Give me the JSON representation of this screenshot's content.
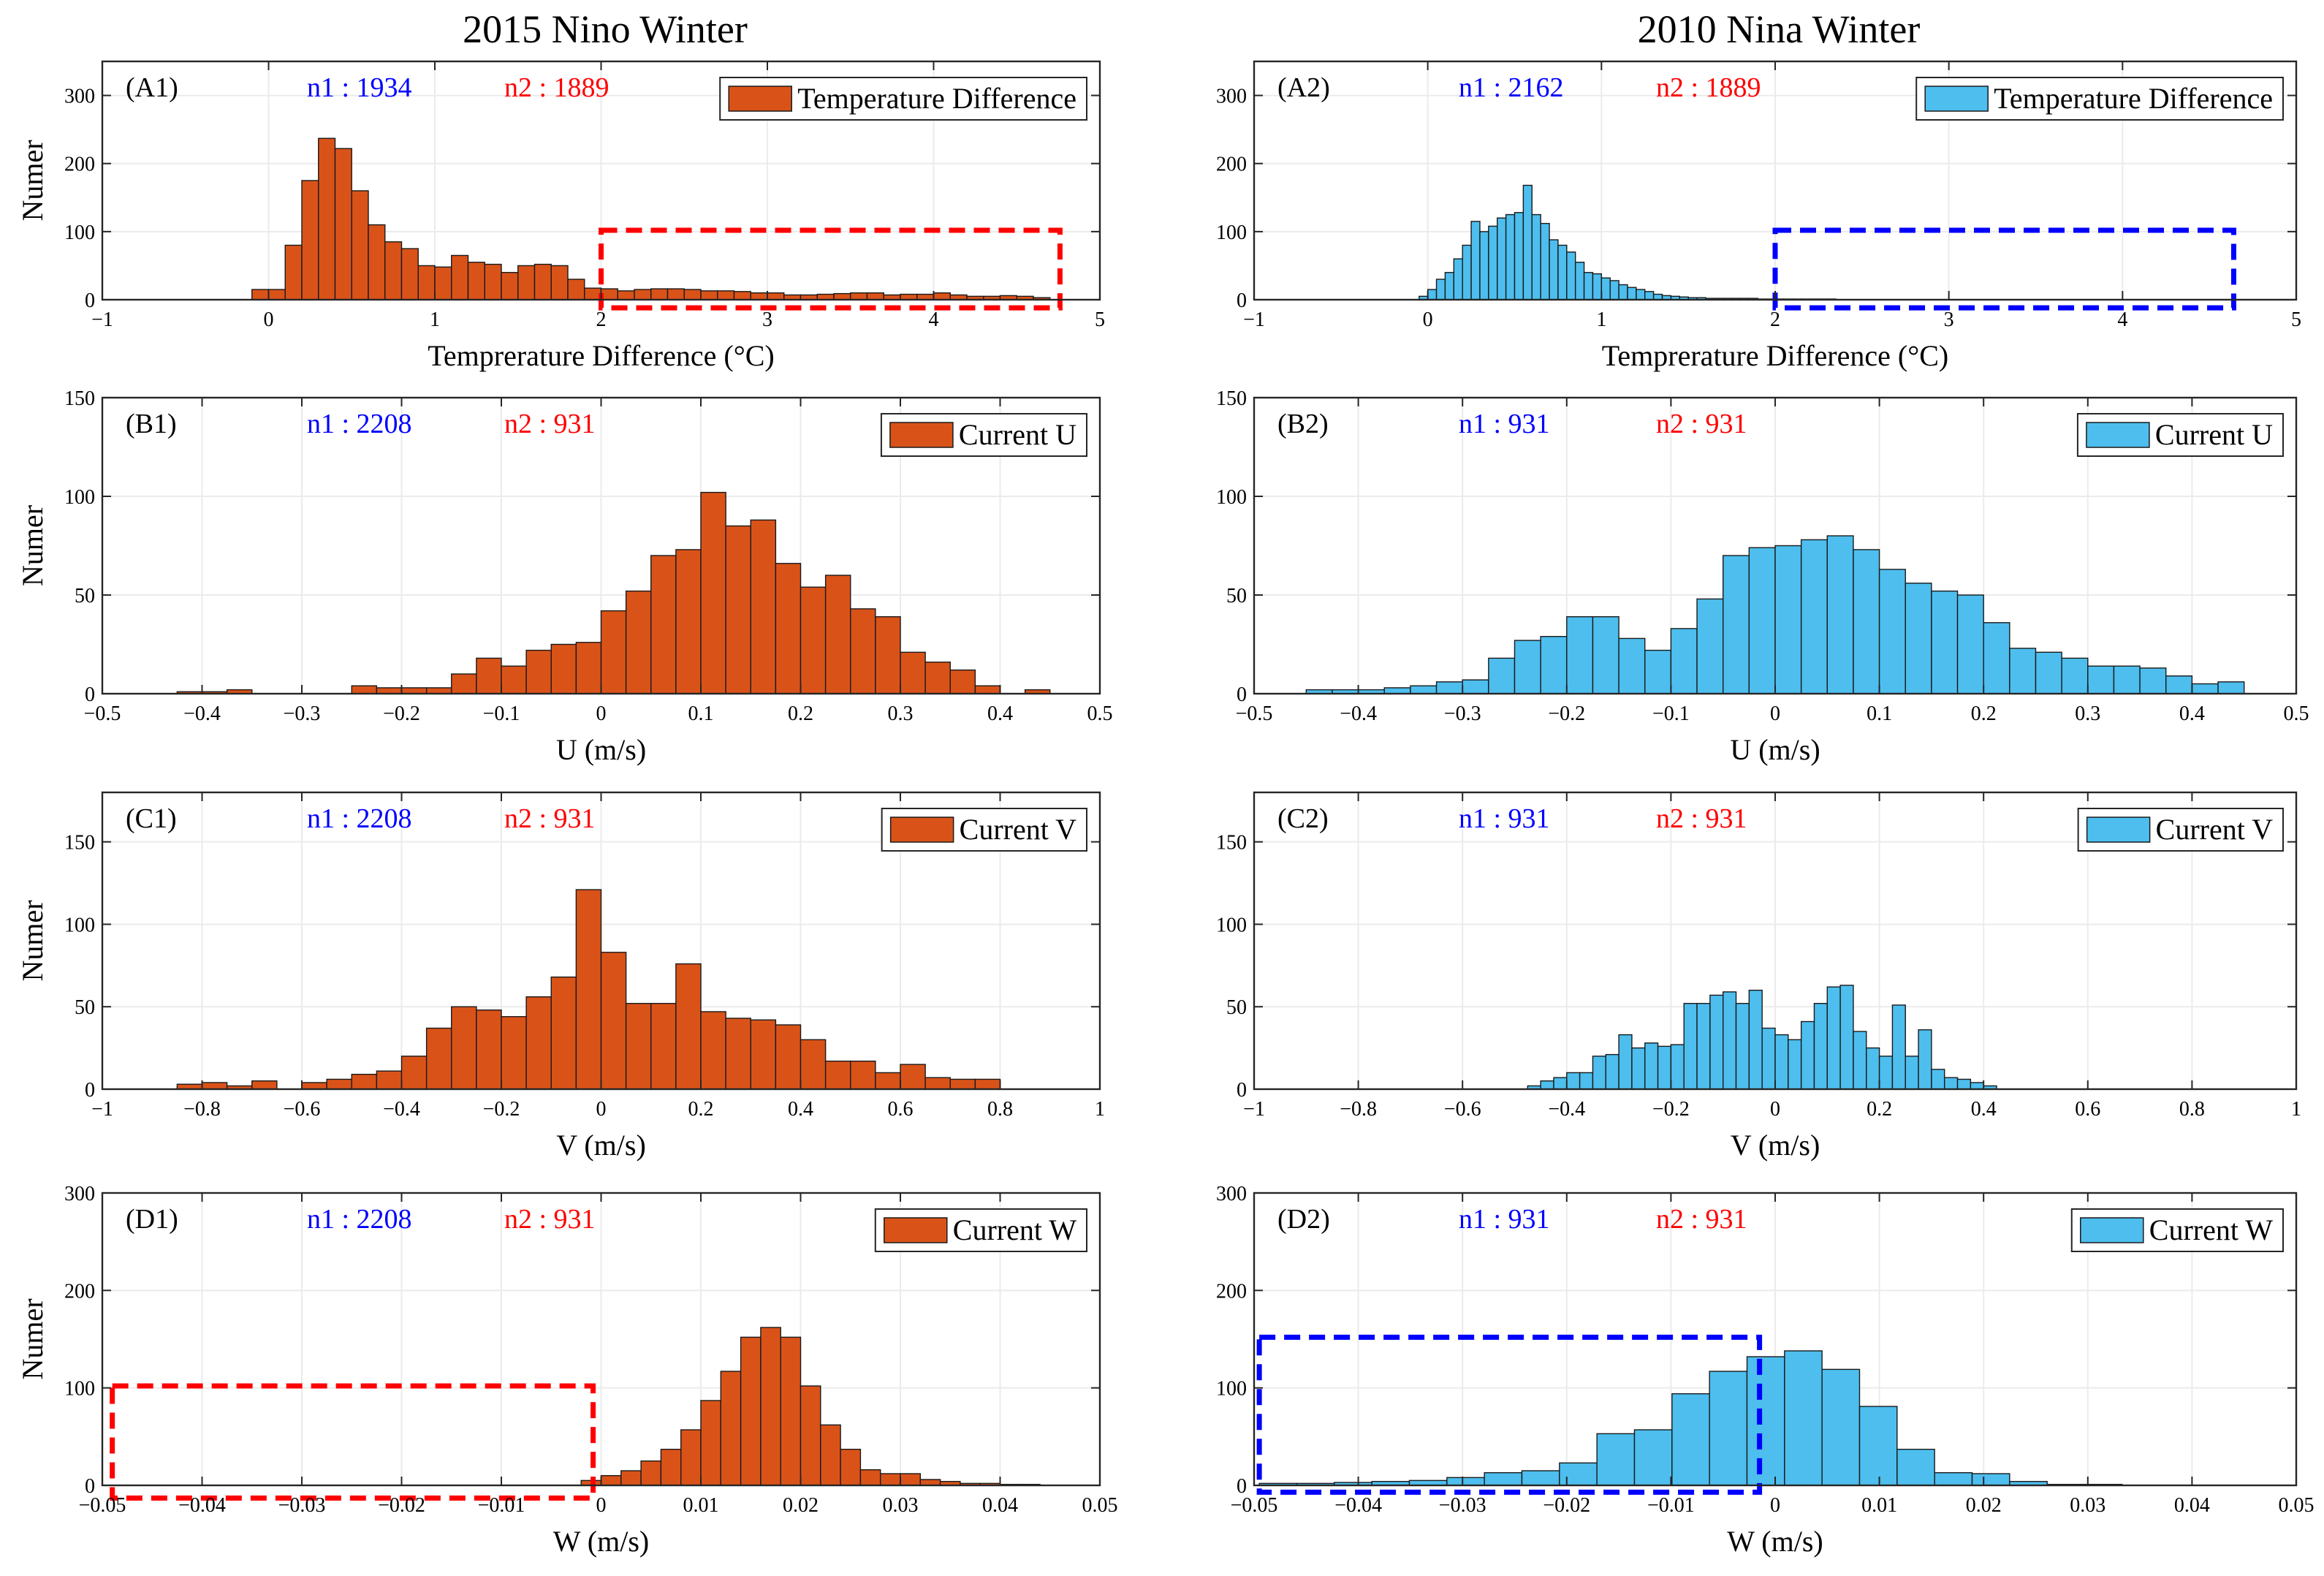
{
  "colors": {
    "nino": "#D95319",
    "nina": "#4DBEEE",
    "n1": "#0000ff",
    "n2": "#ff0000",
    "grid": "#ebebeb"
  },
  "titles": {
    "left": "2015 Nino Winter",
    "right": "2010 Nina Winter"
  },
  "chart_data": [
    {
      "id": "A1",
      "type": "bar",
      "panel_label": "(A1)",
      "n1": "n1 : 1934",
      "n2": "n2 : 1889",
      "legend": "Temperature Difference",
      "legend_loc": "top-right",
      "xlabel": "Temprerature Difference (°C)",
      "ylabel": "Numer",
      "xlim": [
        -1,
        5
      ],
      "ylim": [
        0,
        350
      ],
      "xticks": [
        -1,
        0,
        1,
        2,
        3,
        4,
        5
      ],
      "xtick_labels": [
        "−1",
        "0",
        "1",
        "2",
        "3",
        "4",
        "5"
      ],
      "yticks": [
        0,
        100,
        200,
        300
      ],
      "ytick_labels": [
        "0",
        "100",
        "200",
        "300"
      ],
      "color_key": "nino",
      "bin_start": -0.1,
      "bin_width": 0.1,
      "values": [
        15,
        15,
        80,
        175,
        237,
        222,
        160,
        110,
        85,
        75,
        50,
        48,
        65,
        55,
        52,
        40,
        50,
        52,
        50,
        30,
        17,
        16,
        13,
        15,
        16,
        16,
        15,
        13,
        13,
        12,
        10,
        10,
        7,
        7,
        8,
        9,
        10,
        10,
        7,
        8,
        8,
        10,
        7,
        5,
        5,
        6,
        5,
        3
      ],
      "highlight": {
        "x": [
          2,
          4.76
        ],
        "y": [
          -12,
          102
        ],
        "color_key": "n2"
      }
    },
    {
      "id": "A2",
      "type": "bar",
      "panel_label": "(A2)",
      "n1": "n1 : 2162",
      "n2": "n2 : 1889",
      "legend": "Temperature Difference",
      "legend_loc": "top-right",
      "xlabel": "Temprerature Difference (°C)",
      "ylabel": "",
      "xlim": [
        -1,
        5
      ],
      "ylim": [
        0,
        350
      ],
      "xticks": [
        -1,
        0,
        1,
        2,
        3,
        4,
        5
      ],
      "xtick_labels": [
        "−1",
        "0",
        "1",
        "2",
        "3",
        "4",
        "5"
      ],
      "yticks": [
        0,
        100,
        200,
        300
      ],
      "ytick_labels": [
        "0",
        "100",
        "200",
        "300"
      ],
      "color_key": "nina",
      "bin_start": -0.05,
      "bin_width": 0.05,
      "values": [
        5,
        15,
        30,
        40,
        60,
        80,
        115,
        100,
        108,
        120,
        125,
        128,
        168,
        125,
        112,
        88,
        80,
        70,
        55,
        40,
        38,
        32,
        28,
        22,
        18,
        15,
        12,
        8,
        6,
        5,
        4,
        3,
        3,
        2,
        2,
        2,
        2,
        2,
        2,
        1,
        1,
        1,
        1,
        1,
        1,
        1,
        1,
        1
      ],
      "highlight": {
        "x": [
          2,
          4.64
        ],
        "y": [
          -12,
          102
        ],
        "color_key": "n1"
      }
    },
    {
      "id": "B1",
      "type": "bar",
      "panel_label": "(B1)",
      "n1": "n1 : 2208",
      "n2": "n2 : 931",
      "legend": "Current U",
      "legend_loc": "top-right",
      "xlabel": "U (m/s)",
      "ylabel": "Numer",
      "xlim": [
        -0.5,
        0.5
      ],
      "ylim": [
        0,
        150
      ],
      "xticks": [
        -0.5,
        -0.4,
        -0.3,
        -0.2,
        -0.1,
        0,
        0.1,
        0.2,
        0.3,
        0.4,
        0.5
      ],
      "xtick_labels": [
        "−0.5",
        "−0.4",
        "−0.3",
        "−0.2",
        "−0.1",
        "0",
        "0.1",
        "0.2",
        "0.3",
        "0.4",
        "0.5"
      ],
      "yticks": [
        0,
        50,
        100,
        150
      ],
      "ytick_labels": [
        "0",
        "50",
        "100",
        "150"
      ],
      "color_key": "nino",
      "bin_start": -0.425,
      "bin_width": 0.025,
      "values": [
        1,
        1,
        2,
        0,
        0,
        0,
        0,
        4,
        3,
        3,
        3,
        10,
        18,
        14,
        22,
        25,
        26,
        42,
        52,
        70,
        73,
        102,
        85,
        88,
        66,
        54,
        60,
        43,
        39,
        21,
        16,
        12,
        4,
        0,
        2,
        0,
        0,
        0
      ],
      "highlight": null
    },
    {
      "id": "B2",
      "type": "bar",
      "panel_label": "(B2)",
      "n1": "n1 : 931",
      "n2": "n2 : 931",
      "legend": "Current U",
      "legend_loc": "top-right",
      "xlabel": "U (m/s)",
      "ylabel": "",
      "xlim": [
        -0.5,
        0.5
      ],
      "ylim": [
        0,
        150
      ],
      "xticks": [
        -0.5,
        -0.4,
        -0.3,
        -0.2,
        -0.1,
        0,
        0.1,
        0.2,
        0.3,
        0.4,
        0.5
      ],
      "xtick_labels": [
        "−0.5",
        "−0.4",
        "−0.3",
        "−0.2",
        "−0.1",
        "0",
        "0.1",
        "0.2",
        "0.3",
        "0.4",
        "0.5"
      ],
      "yticks": [
        0,
        50,
        100,
        150
      ],
      "ytick_labels": [
        "0",
        "50",
        "100",
        "150"
      ],
      "color_key": "nina",
      "bin_start": -0.45,
      "bin_width": 0.025,
      "values": [
        2,
        2,
        2,
        3,
        4,
        6,
        7,
        18,
        27,
        29,
        39,
        39,
        28,
        22,
        33,
        48,
        70,
        74,
        75,
        78,
        80,
        73,
        63,
        56,
        52,
        50,
        36,
        23,
        21,
        18,
        14,
        14,
        13,
        9,
        5,
        6,
        0,
        0
      ],
      "highlight": null
    },
    {
      "id": "C1",
      "type": "bar",
      "panel_label": "(C1)",
      "n1": "n1 : 2208",
      "n2": "n2 : 931",
      "legend": "Current V",
      "legend_loc": "top-right",
      "xlabel": "V (m/s)",
      "ylabel": "Numer",
      "xlim": [
        -1,
        1
      ],
      "ylim": [
        0,
        180
      ],
      "xticks": [
        -1,
        -0.8,
        -0.6,
        -0.4,
        -0.2,
        0,
        0.2,
        0.4,
        0.6,
        0.8,
        1
      ],
      "xtick_labels": [
        "−1",
        "−0.8",
        "−0.6",
        "−0.4",
        "−0.2",
        "0",
        "0.2",
        "0.4",
        "0.6",
        "0.8",
        "1"
      ],
      "yticks": [
        0,
        50,
        100,
        150
      ],
      "ytick_labels": [
        "0",
        "50",
        "100",
        "150"
      ],
      "color_key": "nino",
      "bin_start": -0.85,
      "bin_width": 0.05,
      "values": [
        3,
        4,
        2,
        5,
        0,
        4,
        6,
        9,
        11,
        20,
        37,
        50,
        48,
        44,
        56,
        68,
        121,
        83,
        52,
        52,
        76,
        47,
        43,
        42,
        39,
        30,
        17,
        17,
        10,
        15,
        7,
        6,
        6,
        0,
        0,
        0,
        0,
        0
      ],
      "highlight": null
    },
    {
      "id": "C2",
      "type": "bar",
      "panel_label": "(C2)",
      "n1": "n1 : 931",
      "n2": "n2 : 931",
      "legend": "Current V",
      "legend_loc": "top-right",
      "xlabel": "V (m/s)",
      "ylabel": "",
      "xlim": [
        -1,
        1
      ],
      "ylim": [
        0,
        180
      ],
      "xticks": [
        -1,
        -0.8,
        -0.6,
        -0.4,
        -0.2,
        0,
        0.2,
        0.4,
        0.6,
        0.8,
        1
      ],
      "xtick_labels": [
        "−1",
        "−0.8",
        "−0.6",
        "−0.4",
        "−0.2",
        "0",
        "0.2",
        "0.4",
        "0.6",
        "0.8",
        "1"
      ],
      "yticks": [
        0,
        50,
        100,
        150
      ],
      "ytick_labels": [
        "0",
        "50",
        "100",
        "150"
      ],
      "color_key": "nina",
      "bin_start": -0.475,
      "bin_width": 0.025,
      "values": [
        2,
        5,
        7,
        10,
        10,
        20,
        21,
        33,
        25,
        28,
        26,
        27,
        52,
        52,
        57,
        59,
        52,
        60,
        37,
        33,
        30,
        41,
        52,
        62,
        63,
        35,
        25,
        20,
        51,
        20,
        36,
        12,
        7,
        6,
        4,
        2,
        0,
        0,
        0,
        0,
        0,
        0,
        0,
        0,
        0
      ],
      "highlight": null
    },
    {
      "id": "D1",
      "type": "bar",
      "panel_label": "(D1)",
      "n1": "n1 : 2208",
      "n2": "n2 : 931",
      "legend": "Current W",
      "legend_loc": "top-right",
      "xlabel": "W (m/s)",
      "ylabel": "Numer",
      "xlim": [
        -0.05,
        0.05
      ],
      "ylim": [
        0,
        300
      ],
      "xticks": [
        -0.05,
        -0.04,
        -0.03,
        -0.02,
        -0.01,
        0,
        0.01,
        0.02,
        0.03,
        0.04,
        0.05
      ],
      "xtick_labels": [
        "−0.05",
        "−0.04",
        "−0.03",
        "−0.02",
        "−0.01",
        "0",
        "0.01",
        "0.02",
        "0.03",
        "0.04",
        "0.05"
      ],
      "yticks": [
        0,
        100,
        200,
        300
      ],
      "ytick_labels": [
        "0",
        "100",
        "200",
        "300"
      ],
      "color_key": "nino",
      "bin_start": -0.002,
      "bin_width": 0.002,
      "values": [
        5,
        10,
        15,
        25,
        37,
        57,
        87,
        117,
        152,
        162,
        152,
        102,
        62,
        37,
        16,
        12,
        12,
        6,
        4,
        2,
        2,
        1,
        1
      ],
      "highlight": {
        "x": [
          -0.049,
          -0.0008
        ],
        "y": [
          -13,
          102
        ],
        "color_key": "n2"
      }
    },
    {
      "id": "D2",
      "type": "bar",
      "panel_label": "(D2)",
      "n1": "n1 : 931",
      "n2": "n2 : 931",
      "legend": "Current W",
      "legend_loc": "top-right",
      "xlabel": "W (m/s)",
      "ylabel": "",
      "xlim": [
        -0.05,
        0.05
      ],
      "ylim": [
        0,
        300
      ],
      "xticks": [
        -0.05,
        -0.04,
        -0.03,
        -0.02,
        -0.01,
        0,
        0.01,
        0.02,
        0.03,
        0.04,
        0.05
      ],
      "xtick_labels": [
        "−0.05",
        "−0.04",
        "−0.03",
        "−0.02",
        "−0.01",
        "0",
        "0.01",
        "0.02",
        "0.03",
        "0.04",
        "0.05"
      ],
      "yticks": [
        0,
        100,
        200,
        300
      ],
      "ytick_labels": [
        "0",
        "100",
        "200",
        "300"
      ],
      "color_key": "nina",
      "bin_start": -0.0495,
      "bin_width": 0.0036,
      "values": [
        2,
        2,
        3,
        4,
        5,
        8,
        13,
        15,
        23,
        53,
        57,
        94,
        117,
        132,
        138,
        119,
        81,
        37,
        13,
        12,
        4,
        1,
        1,
        0
      ],
      "highlight": {
        "x": [
          -0.0495,
          -0.0015
        ],
        "y": [
          -7,
          152
        ],
        "color_key": "n1"
      }
    }
  ]
}
